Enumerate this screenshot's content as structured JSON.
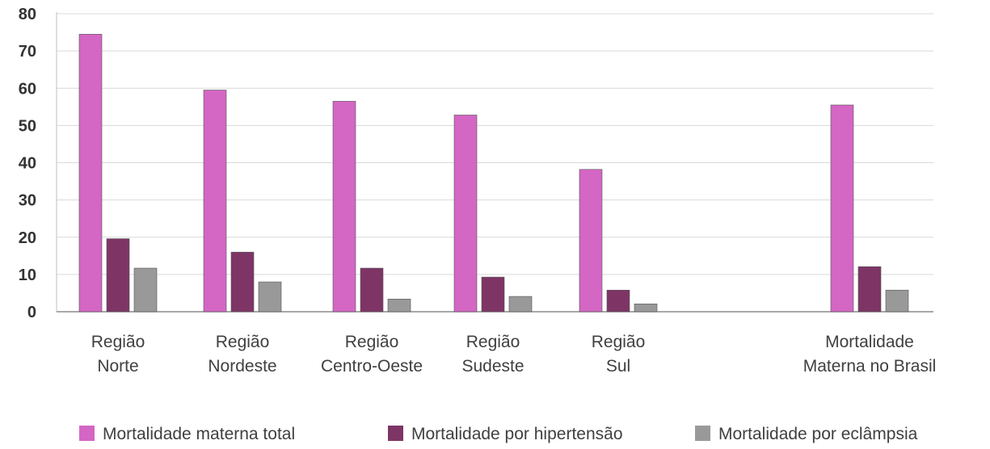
{
  "chart_data": {
    "type": "bar",
    "title": "",
    "xlabel": "",
    "ylabel": "",
    "ylim": [
      0,
      80
    ],
    "yticks": [
      "0",
      "10",
      "20",
      "30",
      "40",
      "50",
      "60",
      "70",
      "80"
    ],
    "grid": true,
    "legend_position": "bottom",
    "categories": [
      [
        "Região",
        "Norte"
      ],
      [
        "Região",
        "Nordeste"
      ],
      [
        "Região",
        "Centro-Oeste"
      ],
      [
        "Região",
        "Sudeste"
      ],
      [
        "Região",
        "Sul"
      ],
      [
        "Mortalidade",
        "Materna no Brasil"
      ]
    ],
    "series": [
      {
        "name": "Mortalidade materna total",
        "color": "#d466c4",
        "values": [
          74.5,
          59.5,
          56.5,
          52.8,
          38.2,
          55.5
        ]
      },
      {
        "name": "Mortalidade por hipertensão",
        "color": "#7e3566",
        "values": [
          19.6,
          16.0,
          11.7,
          9.3,
          5.8,
          12.1
        ]
      },
      {
        "name": "Mortalidade por eclâmpsia",
        "color": "#999999",
        "values": [
          11.7,
          8.0,
          3.4,
          4.1,
          2.1,
          5.8
        ]
      }
    ]
  }
}
